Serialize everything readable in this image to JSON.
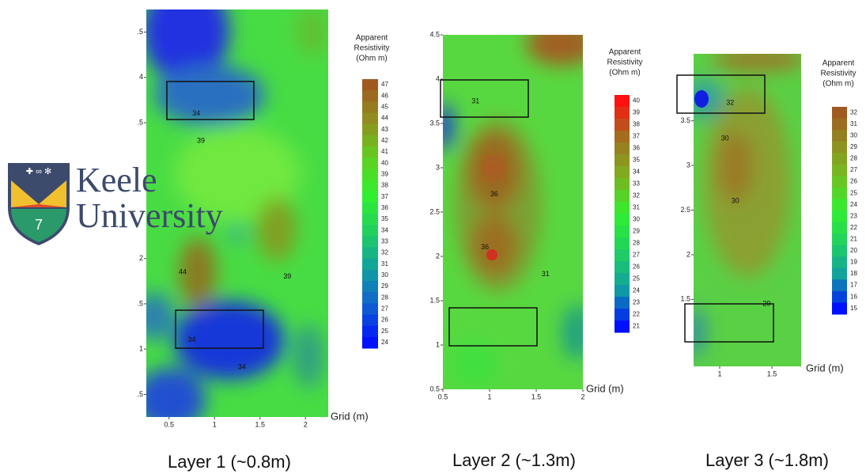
{
  "logo": {
    "lines": [
      "Keele",
      "University"
    ],
    "badge_text": "7"
  },
  "chart_data": [
    {
      "type": "contour",
      "title": "Layer 1 (~0.8m)",
      "x_label": "Grid (m)",
      "colorbar_title": [
        "Apparent",
        "Resistivity",
        "(Ohm m)"
      ],
      "xlim": [
        0.25,
        2.25
      ],
      "ylim": [
        0.25,
        4.75
      ],
      "xticks": [
        0.5,
        1,
        1.5,
        2
      ],
      "yticks": [
        {
          "value": 4.5,
          "label": ".5"
        },
        4,
        {
          "value": 3.5,
          "label": ".5"
        },
        2,
        {
          "value": 1.5,
          "label": ".5"
        },
        1,
        {
          "value": 0.5,
          "label": ".5"
        }
      ],
      "cbar_ticks": [
        47,
        46,
        45,
        44,
        43,
        42,
        41,
        40,
        39,
        38,
        37,
        36,
        35,
        34,
        33,
        32,
        31,
        30,
        29,
        28,
        27,
        26,
        25,
        24
      ],
      "colormap": [
        "#0010ff",
        "#1060d0",
        "#10a0a0",
        "#20d060",
        "#30f030",
        "#60d020",
        "#909020",
        "#a05a20"
      ],
      "contour_labels": [
        {
          "value": 34,
          "x": 0.8,
          "y": 3.6
        },
        {
          "value": 39,
          "x": 0.85,
          "y": 3.3
        },
        {
          "value": 44,
          "x": 0.65,
          "y": 1.85
        },
        {
          "value": 39,
          "x": 1.8,
          "y": 1.8
        },
        {
          "value": 34,
          "x": 0.75,
          "y": 1.1
        },
        {
          "value": 34,
          "x": 1.3,
          "y": 0.8
        }
      ]
    },
    {
      "type": "contour",
      "title": "Layer 2 (~1.3m)",
      "x_label": "Grid (m)",
      "colorbar_title": [
        "Apparent",
        "Resistivity",
        "(Ohm m)"
      ],
      "xlim": [
        0.5,
        2
      ],
      "ylim": [
        0.5,
        4.5
      ],
      "xticks": [
        0.5,
        1,
        1.5,
        2
      ],
      "yticks": [
        4.5,
        4,
        3.5,
        3,
        2.5,
        2,
        1.5,
        1,
        0.5
      ],
      "cbar_ticks": [
        40,
        39,
        38,
        37,
        36,
        35,
        34,
        33,
        32,
        31,
        30,
        29,
        28,
        27,
        26,
        25,
        24,
        23,
        22,
        21
      ],
      "colormap": [
        "#0010ff",
        "#10a0a0",
        "#20d060",
        "#30f030",
        "#80b020",
        "#a07020",
        "#ff1010"
      ],
      "contour_labels": [
        {
          "value": 31,
          "x": 0.85,
          "y": 3.75
        },
        {
          "value": 36,
          "x": 1.05,
          "y": 2.7
        },
        {
          "value": 36,
          "x": 0.95,
          "y": 2.1
        },
        {
          "value": 31,
          "x": 1.6,
          "y": 1.8
        }
      ]
    },
    {
      "type": "contour",
      "title": "Layer 3 (~1.8m)",
      "x_label": "Grid (m)",
      "colorbar_title": [
        "Apparent",
        "Resistivity",
        "(Ohm m)"
      ],
      "xlim": [
        0.75,
        1.78
      ],
      "ylim": [
        0.75,
        4.25
      ],
      "xticks": [
        1,
        1.5
      ],
      "yticks": [
        3.5,
        3,
        2.5,
        2,
        1.5
      ],
      "cbar_ticks": [
        32,
        31,
        30,
        29,
        28,
        27,
        26,
        25,
        24,
        23,
        22,
        21,
        20,
        19,
        18,
        17,
        16,
        15
      ],
      "colormap": [
        "#0010ff",
        "#10a0a0",
        "#20d060",
        "#30f030",
        "#70c020",
        "#909020",
        "#a05a20"
      ],
      "contour_labels": [
        {
          "value": 32,
          "x": 1.1,
          "y": 3.7
        },
        {
          "value": 30,
          "x": 1.05,
          "y": 3.3
        },
        {
          "value": 30,
          "x": 1.15,
          "y": 2.6
        },
        {
          "value": 29,
          "x": 1.45,
          "y": 1.45
        }
      ]
    }
  ]
}
